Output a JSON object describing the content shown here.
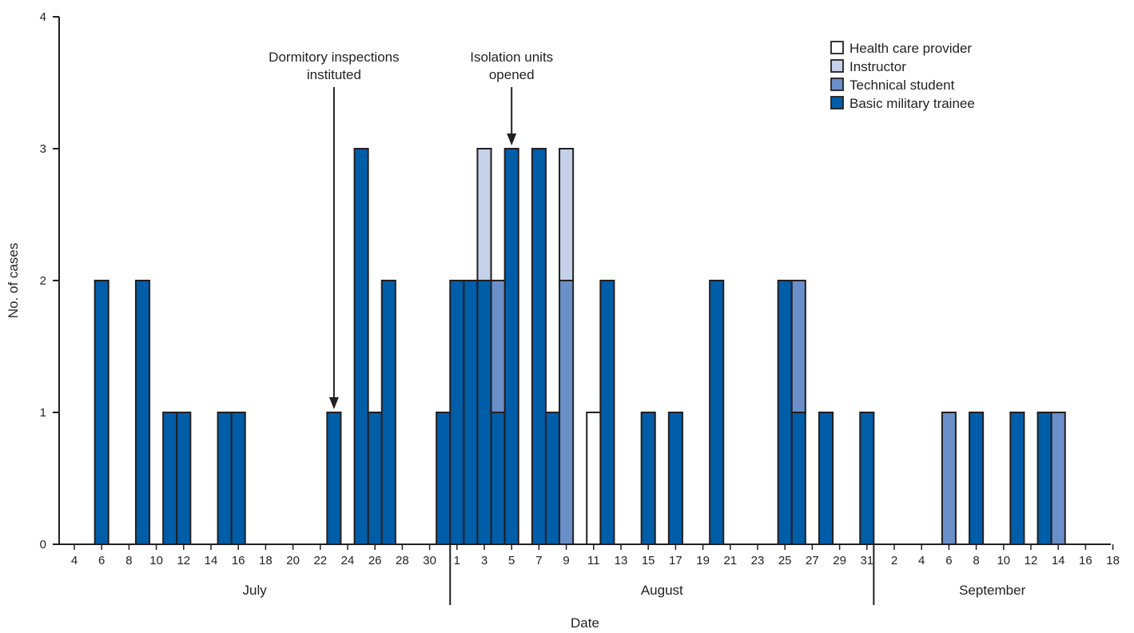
{
  "chart_data": {
    "type": "bar",
    "stacked": true,
    "title": "",
    "xlabel": "Date",
    "ylabel": "No. of cases",
    "ylim": [
      0,
      4
    ],
    "yticks": [
      0,
      1,
      2,
      3,
      4
    ],
    "grid": false,
    "legend_position": "top-right",
    "months": [
      "July",
      "August",
      "September"
    ],
    "dates": [
      "Jul 4",
      "Jul 5",
      "Jul 6",
      "Jul 7",
      "Jul 8",
      "Jul 9",
      "Jul 10",
      "Jul 11",
      "Jul 12",
      "Jul 13",
      "Jul 14",
      "Jul 15",
      "Jul 16",
      "Jul 17",
      "Jul 18",
      "Jul 19",
      "Jul 20",
      "Jul 21",
      "Jul 22",
      "Jul 23",
      "Jul 24",
      "Jul 25",
      "Jul 26",
      "Jul 27",
      "Jul 28",
      "Jul 29",
      "Jul 30",
      "Jul 31",
      "Aug 1",
      "Aug 2",
      "Aug 3",
      "Aug 4",
      "Aug 5",
      "Aug 6",
      "Aug 7",
      "Aug 8",
      "Aug 9",
      "Aug 10",
      "Aug 11",
      "Aug 12",
      "Aug 13",
      "Aug 14",
      "Aug 15",
      "Aug 16",
      "Aug 17",
      "Aug 18",
      "Aug 19",
      "Aug 20",
      "Aug 21",
      "Aug 22",
      "Aug 23",
      "Aug 24",
      "Aug 25",
      "Aug 26",
      "Aug 27",
      "Aug 28",
      "Aug 29",
      "Aug 30",
      "Aug 31",
      "Sep 1",
      "Sep 2",
      "Sep 3",
      "Sep 4",
      "Sep 5",
      "Sep 6",
      "Sep 7",
      "Sep 8",
      "Sep 9",
      "Sep 10",
      "Sep 11",
      "Sep 12",
      "Sep 13",
      "Sep 14",
      "Sep 15",
      "Sep 16",
      "Sep 17",
      "Sep 18"
    ],
    "tick_labels": [
      {
        "date": "Jul 4",
        "label": "4"
      },
      {
        "date": "Jul 6",
        "label": "6"
      },
      {
        "date": "Jul 8",
        "label": "8"
      },
      {
        "date": "Jul 10",
        "label": "10"
      },
      {
        "date": "Jul 12",
        "label": "12"
      },
      {
        "date": "Jul 14",
        "label": "14"
      },
      {
        "date": "Jul 16",
        "label": "16"
      },
      {
        "date": "Jul 18",
        "label": "18"
      },
      {
        "date": "Jul 20",
        "label": "20"
      },
      {
        "date": "Jul 22",
        "label": "22"
      },
      {
        "date": "Jul 24",
        "label": "24"
      },
      {
        "date": "Jul 26",
        "label": "26"
      },
      {
        "date": "Jul 28",
        "label": "28"
      },
      {
        "date": "Jul 30",
        "label": "30"
      },
      {
        "date": "Aug 1",
        "label": "1"
      },
      {
        "date": "Aug 3",
        "label": "3"
      },
      {
        "date": "Aug 5",
        "label": "5"
      },
      {
        "date": "Aug 7",
        "label": "7"
      },
      {
        "date": "Aug 9",
        "label": "9"
      },
      {
        "date": "Aug 11",
        "label": "11"
      },
      {
        "date": "Aug 13",
        "label": "13"
      },
      {
        "date": "Aug 15",
        "label": "15"
      },
      {
        "date": "Aug 17",
        "label": "17"
      },
      {
        "date": "Aug 19",
        "label": "19"
      },
      {
        "date": "Aug 21",
        "label": "21"
      },
      {
        "date": "Aug 23",
        "label": "23"
      },
      {
        "date": "Aug 25",
        "label": "25"
      },
      {
        "date": "Aug 27",
        "label": "27"
      },
      {
        "date": "Aug 29",
        "label": "29"
      },
      {
        "date": "Aug 31",
        "label": "31"
      },
      {
        "date": "Sep 2",
        "label": "2"
      },
      {
        "date": "Sep 4",
        "label": "4"
      },
      {
        "date": "Sep 6",
        "label": "6"
      },
      {
        "date": "Sep 8",
        "label": "8"
      },
      {
        "date": "Sep 10",
        "label": "10"
      },
      {
        "date": "Sep 12",
        "label": "12"
      },
      {
        "date": "Sep 14",
        "label": "14"
      },
      {
        "date": "Sep 16",
        "label": "16"
      },
      {
        "date": "Sep 18",
        "label": "18"
      }
    ],
    "series": [
      {
        "name": "Basic military trainee",
        "color": "#005da8",
        "points": [
          {
            "date": "Jul 6",
            "value": 2
          },
          {
            "date": "Jul 9",
            "value": 2
          },
          {
            "date": "Jul 11",
            "value": 1
          },
          {
            "date": "Jul 12",
            "value": 1
          },
          {
            "date": "Jul 15",
            "value": 1
          },
          {
            "date": "Jul 16",
            "value": 1
          },
          {
            "date": "Jul 23",
            "value": 1
          },
          {
            "date": "Jul 25",
            "value": 3
          },
          {
            "date": "Jul 26",
            "value": 1
          },
          {
            "date": "Jul 27",
            "value": 2
          },
          {
            "date": "Jul 31",
            "value": 1
          },
          {
            "date": "Aug 1",
            "value": 2
          },
          {
            "date": "Aug 2",
            "value": 2
          },
          {
            "date": "Aug 3",
            "value": 2
          },
          {
            "date": "Aug 4",
            "value": 1
          },
          {
            "date": "Aug 5",
            "value": 3
          },
          {
            "date": "Aug 7",
            "value": 3
          },
          {
            "date": "Aug 8",
            "value": 1
          },
          {
            "date": "Aug 12",
            "value": 2
          },
          {
            "date": "Aug 15",
            "value": 1
          },
          {
            "date": "Aug 17",
            "value": 1
          },
          {
            "date": "Aug 20",
            "value": 2
          },
          {
            "date": "Aug 25",
            "value": 2
          },
          {
            "date": "Aug 26",
            "value": 1
          },
          {
            "date": "Aug 28",
            "value": 1
          },
          {
            "date": "Aug 31",
            "value": 1
          },
          {
            "date": "Sep 8",
            "value": 1
          },
          {
            "date": "Sep 11",
            "value": 1
          },
          {
            "date": "Sep 13",
            "value": 1
          }
        ]
      },
      {
        "name": "Technical student",
        "color": "#6a8fc9",
        "points": [
          {
            "date": "Aug 4",
            "value": 1
          },
          {
            "date": "Aug 9",
            "value": 2
          },
          {
            "date": "Aug 26",
            "value": 1
          },
          {
            "date": "Sep 6",
            "value": 1
          },
          {
            "date": "Sep 14",
            "value": 1
          }
        ]
      },
      {
        "name": "Instructor",
        "color": "#c5d0e9",
        "points": [
          {
            "date": "Aug 3",
            "value": 1
          },
          {
            "date": "Aug 9",
            "value": 1
          }
        ]
      },
      {
        "name": "Health care provider",
        "color": "#ffffff",
        "points": [
          {
            "date": "Aug 11",
            "value": 1
          }
        ]
      }
    ],
    "annotations": [
      {
        "text_lines": [
          "Dormitory inspections",
          "instituted"
        ],
        "date": "Jul 23"
      },
      {
        "text_lines": [
          "Isolation units",
          "opened"
        ],
        "date": "Aug 5"
      }
    ]
  }
}
